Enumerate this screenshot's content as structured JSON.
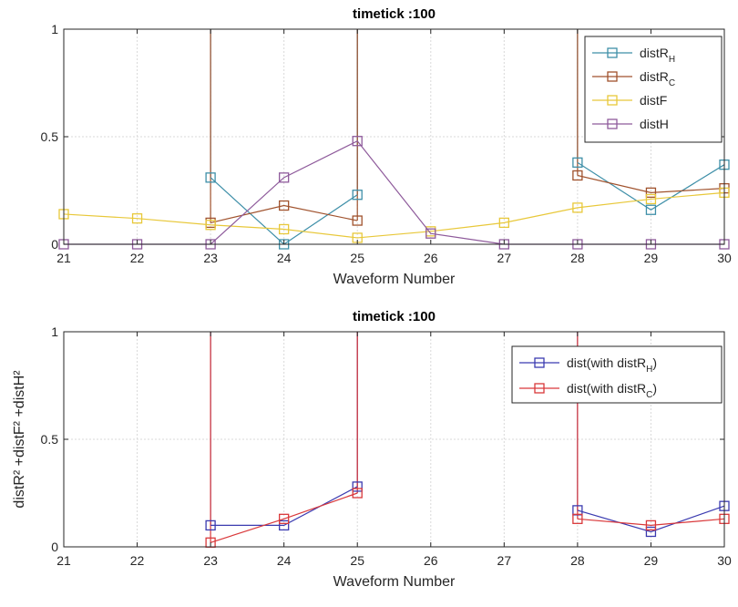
{
  "chart_data": [
    {
      "type": "line",
      "title": "timetick :100",
      "xlabel": "Waveform Number",
      "ylabel": "",
      "xlim": [
        21,
        30
      ],
      "ylim": [
        0,
        1
      ],
      "xticks": [
        "21",
        "22",
        "23",
        "24",
        "25",
        "26",
        "27",
        "28",
        "29",
        "30"
      ],
      "yticks": [
        "0",
        "0.5",
        "1"
      ],
      "grid": true,
      "legend_position": "top-right",
      "marker": "square",
      "series": [
        {
          "name": "distR",
          "subscript": "H",
          "color": "#3E8FA8",
          "x": [
            23,
            24,
            25,
            28,
            29,
            30
          ],
          "y": [
            0.31,
            0.0,
            0.23,
            0.38,
            0.16,
            0.37
          ],
          "spikes": [
            23,
            25,
            28
          ]
        },
        {
          "name": "distR",
          "subscript": "C",
          "color": "#A0522D",
          "x": [
            23,
            24,
            25,
            28,
            29,
            30
          ],
          "y": [
            0.1,
            0.18,
            0.11,
            0.32,
            0.24,
            0.26
          ],
          "spikes": [
            23,
            25,
            28
          ]
        },
        {
          "name": "distF",
          "subscript": "",
          "color": "#E8C83A",
          "x": [
            21,
            22,
            23,
            24,
            25,
            26,
            27,
            28,
            29,
            30
          ],
          "y": [
            0.14,
            0.12,
            0.09,
            0.07,
            0.03,
            0.06,
            0.1,
            0.17,
            0.21,
            0.24
          ],
          "spikes": []
        },
        {
          "name": "distH",
          "subscript": "",
          "color": "#8E5A9B",
          "x": [
            21,
            22,
            23,
            24,
            25,
            26,
            27,
            28,
            29,
            30
          ],
          "y": [
            0.0,
            0.0,
            0.0,
            0.31,
            0.48,
            0.05,
            0.0,
            0.0,
            0.0,
            0.0
          ],
          "spikes": []
        }
      ]
    },
    {
      "type": "line",
      "title": "timetick :100",
      "xlabel": "Waveform Number",
      "ylabel": "distR² +distF² +distH²",
      "xlim": [
        21,
        30
      ],
      "ylim": [
        0,
        1
      ],
      "xticks": [
        "21",
        "22",
        "23",
        "24",
        "25",
        "26",
        "27",
        "28",
        "29",
        "30"
      ],
      "yticks": [
        "0",
        "0.5",
        "1"
      ],
      "grid": true,
      "legend_position": "top-right",
      "marker": "square",
      "series": [
        {
          "name": "dist(with distR",
          "subscript": "H",
          "suffix": ")",
          "color": "#3B3BB0",
          "x": [
            23,
            24,
            25,
            28,
            29,
            30
          ],
          "y": [
            0.1,
            0.1,
            0.28,
            0.17,
            0.07,
            0.19
          ],
          "spikes": [
            23,
            25,
            28
          ]
        },
        {
          "name": "dist(with distR",
          "subscript": "C",
          "suffix": ")",
          "color": "#D9383A",
          "x": [
            23,
            24,
            25,
            28,
            29,
            30
          ],
          "y": [
            0.02,
            0.13,
            0.25,
            0.13,
            0.1,
            0.13
          ],
          "spikes": [
            23,
            25,
            28
          ]
        }
      ]
    }
  ]
}
